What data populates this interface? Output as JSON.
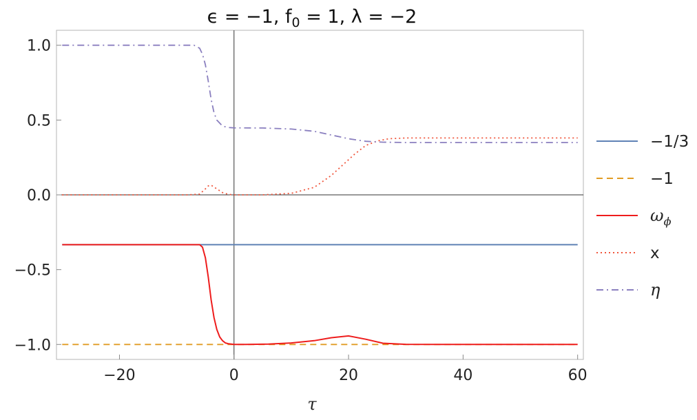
{
  "chart_data": {
    "type": "line",
    "title_parts": [
      "ϵ = −1, f",
      "0",
      " = 1, λ = −2"
    ],
    "xlabel": "τ",
    "ylabel": "",
    "xlim": [
      -31,
      61
    ],
    "ylim": [
      -1.1,
      1.1
    ],
    "xticks": [
      -20,
      0,
      20,
      40,
      60
    ],
    "xtick_labels": [
      "−20",
      "0",
      "20",
      "40",
      "60"
    ],
    "yticks": [
      1.0,
      0.5,
      0.0,
      -0.5,
      -1.0
    ],
    "ytick_labels": [
      "1.0",
      "0.5",
      "0.0",
      "−0.5",
      "−1.0"
    ],
    "grid": false,
    "legend_position": "right",
    "series": [
      {
        "name": "−1/3",
        "color": "#5e81b5",
        "dash": "solid",
        "x": [
          -30,
          60
        ],
        "y": [
          -0.333,
          -0.333
        ]
      },
      {
        "name": "−1",
        "color": "#e19c24",
        "dash": "dashed",
        "x": [
          -30,
          60
        ],
        "y": [
          -1.0,
          -1.0
        ]
      },
      {
        "name": "ωϕ",
        "name_parts": [
          "ω",
          "ϕ"
        ],
        "color": "#ee1c1c",
        "dash": "solid",
        "x": [
          -30,
          -6,
          -5.5,
          -5,
          -4.5,
          -4,
          -3.5,
          -3,
          -2.5,
          -2,
          -1.5,
          -1,
          0,
          2,
          6,
          10,
          14,
          17,
          20,
          23,
          26,
          30,
          40,
          60
        ],
        "y": [
          -0.333,
          -0.333,
          -0.35,
          -0.42,
          -0.55,
          -0.7,
          -0.82,
          -0.9,
          -0.95,
          -0.975,
          -0.99,
          -0.995,
          -1.0,
          -1.0,
          -0.998,
          -0.99,
          -0.975,
          -0.955,
          -0.943,
          -0.965,
          -0.992,
          -0.999,
          -1.0,
          -1.0
        ]
      },
      {
        "name": "x",
        "color": "#f0543a",
        "dash": "dotted",
        "x": [
          -30,
          -8,
          -6,
          -5,
          -4.5,
          -4,
          -3,
          -2,
          -1,
          0,
          5,
          10,
          14,
          17,
          19,
          21,
          23,
          25,
          27,
          30,
          40,
          60
        ],
        "y": [
          0.0,
          0.0,
          0.005,
          0.04,
          0.06,
          0.065,
          0.04,
          0.015,
          0.003,
          0.0,
          0.0,
          0.01,
          0.05,
          0.13,
          0.2,
          0.27,
          0.33,
          0.36,
          0.375,
          0.38,
          0.38,
          0.38
        ]
      },
      {
        "name": "η",
        "color": "#8a7fbf",
        "dash": "dashdot",
        "x": [
          -30,
          -7,
          -6,
          -5.5,
          -5,
          -4.5,
          -4,
          -3.5,
          -3,
          -2,
          -1,
          0,
          5,
          10,
          14,
          17,
          20,
          23,
          26,
          30,
          40,
          60
        ],
        "y": [
          1.0,
          1.0,
          0.98,
          0.94,
          0.87,
          0.76,
          0.64,
          0.55,
          0.5,
          0.46,
          0.45,
          0.448,
          0.447,
          0.44,
          0.425,
          0.4,
          0.375,
          0.358,
          0.352,
          0.35,
          0.35,
          0.35
        ]
      }
    ]
  }
}
